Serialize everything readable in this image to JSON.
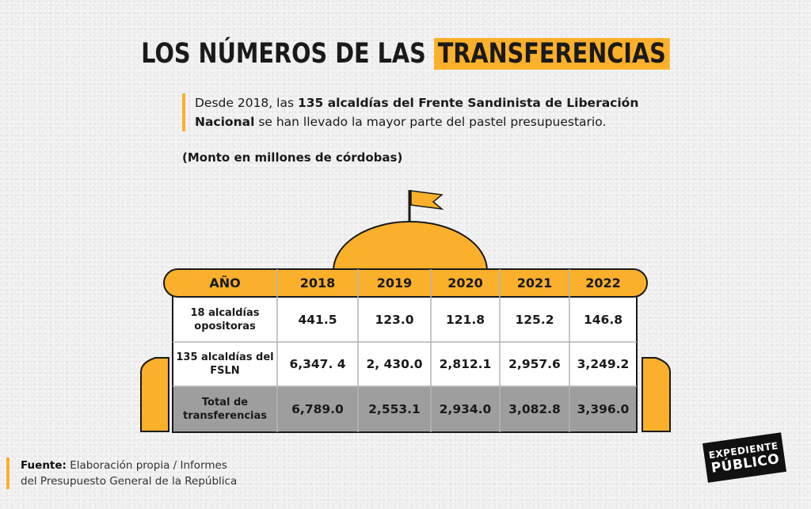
{
  "header": {
    "title_prefix": "LOS NÚMEROS DE LAS",
    "title_highlight": "TRANSFERENCIAS",
    "intro_pre": "Desde 2018, las ",
    "intro_bold": "135 alcaldías del Frente Sandinista de Liberación Nacional",
    "intro_post": " se han llevado la mayor parte del pastel presupuestario.",
    "unit": "(Monto en millones de córdobas)"
  },
  "colors": {
    "accent": "#fbb02c",
    "grid": "#b3b3b3",
    "total_row": "#9e9e9e",
    "text": "#1a1a1a"
  },
  "chart_data": {
    "type": "table",
    "title": "LOS NÚMEROS DE LAS TRANSFERENCIAS",
    "subtitle": "(Monto en millones de córdobas)",
    "columns": [
      "AÑO",
      "2018",
      "2019",
      "2020",
      "2021",
      "2022"
    ],
    "rows": [
      {
        "label": "18 alcaldías opositoras",
        "values": [
          "441.5",
          "123.0",
          "121.8",
          "125.2",
          "146.8"
        ]
      },
      {
        "label": "135 alcaldías del FSLN",
        "values": [
          "6,347. 4",
          "2, 430.0",
          "2,812.1",
          "2,957.6",
          "3,249.2"
        ]
      },
      {
        "label": "Total de transferencias",
        "values": [
          "6,789.0",
          "2,553.1",
          "2,934.0",
          "3,082.8",
          "3,396.0"
        ]
      }
    ]
  },
  "footer": {
    "source_label": "Fuente:",
    "source_text_1": " Elaboración propia / Informes",
    "source_text_2": "del Presupuesto General de la República",
    "logo_line1": "EXPEDIENTE",
    "logo_line2": "PÚBLICO"
  }
}
